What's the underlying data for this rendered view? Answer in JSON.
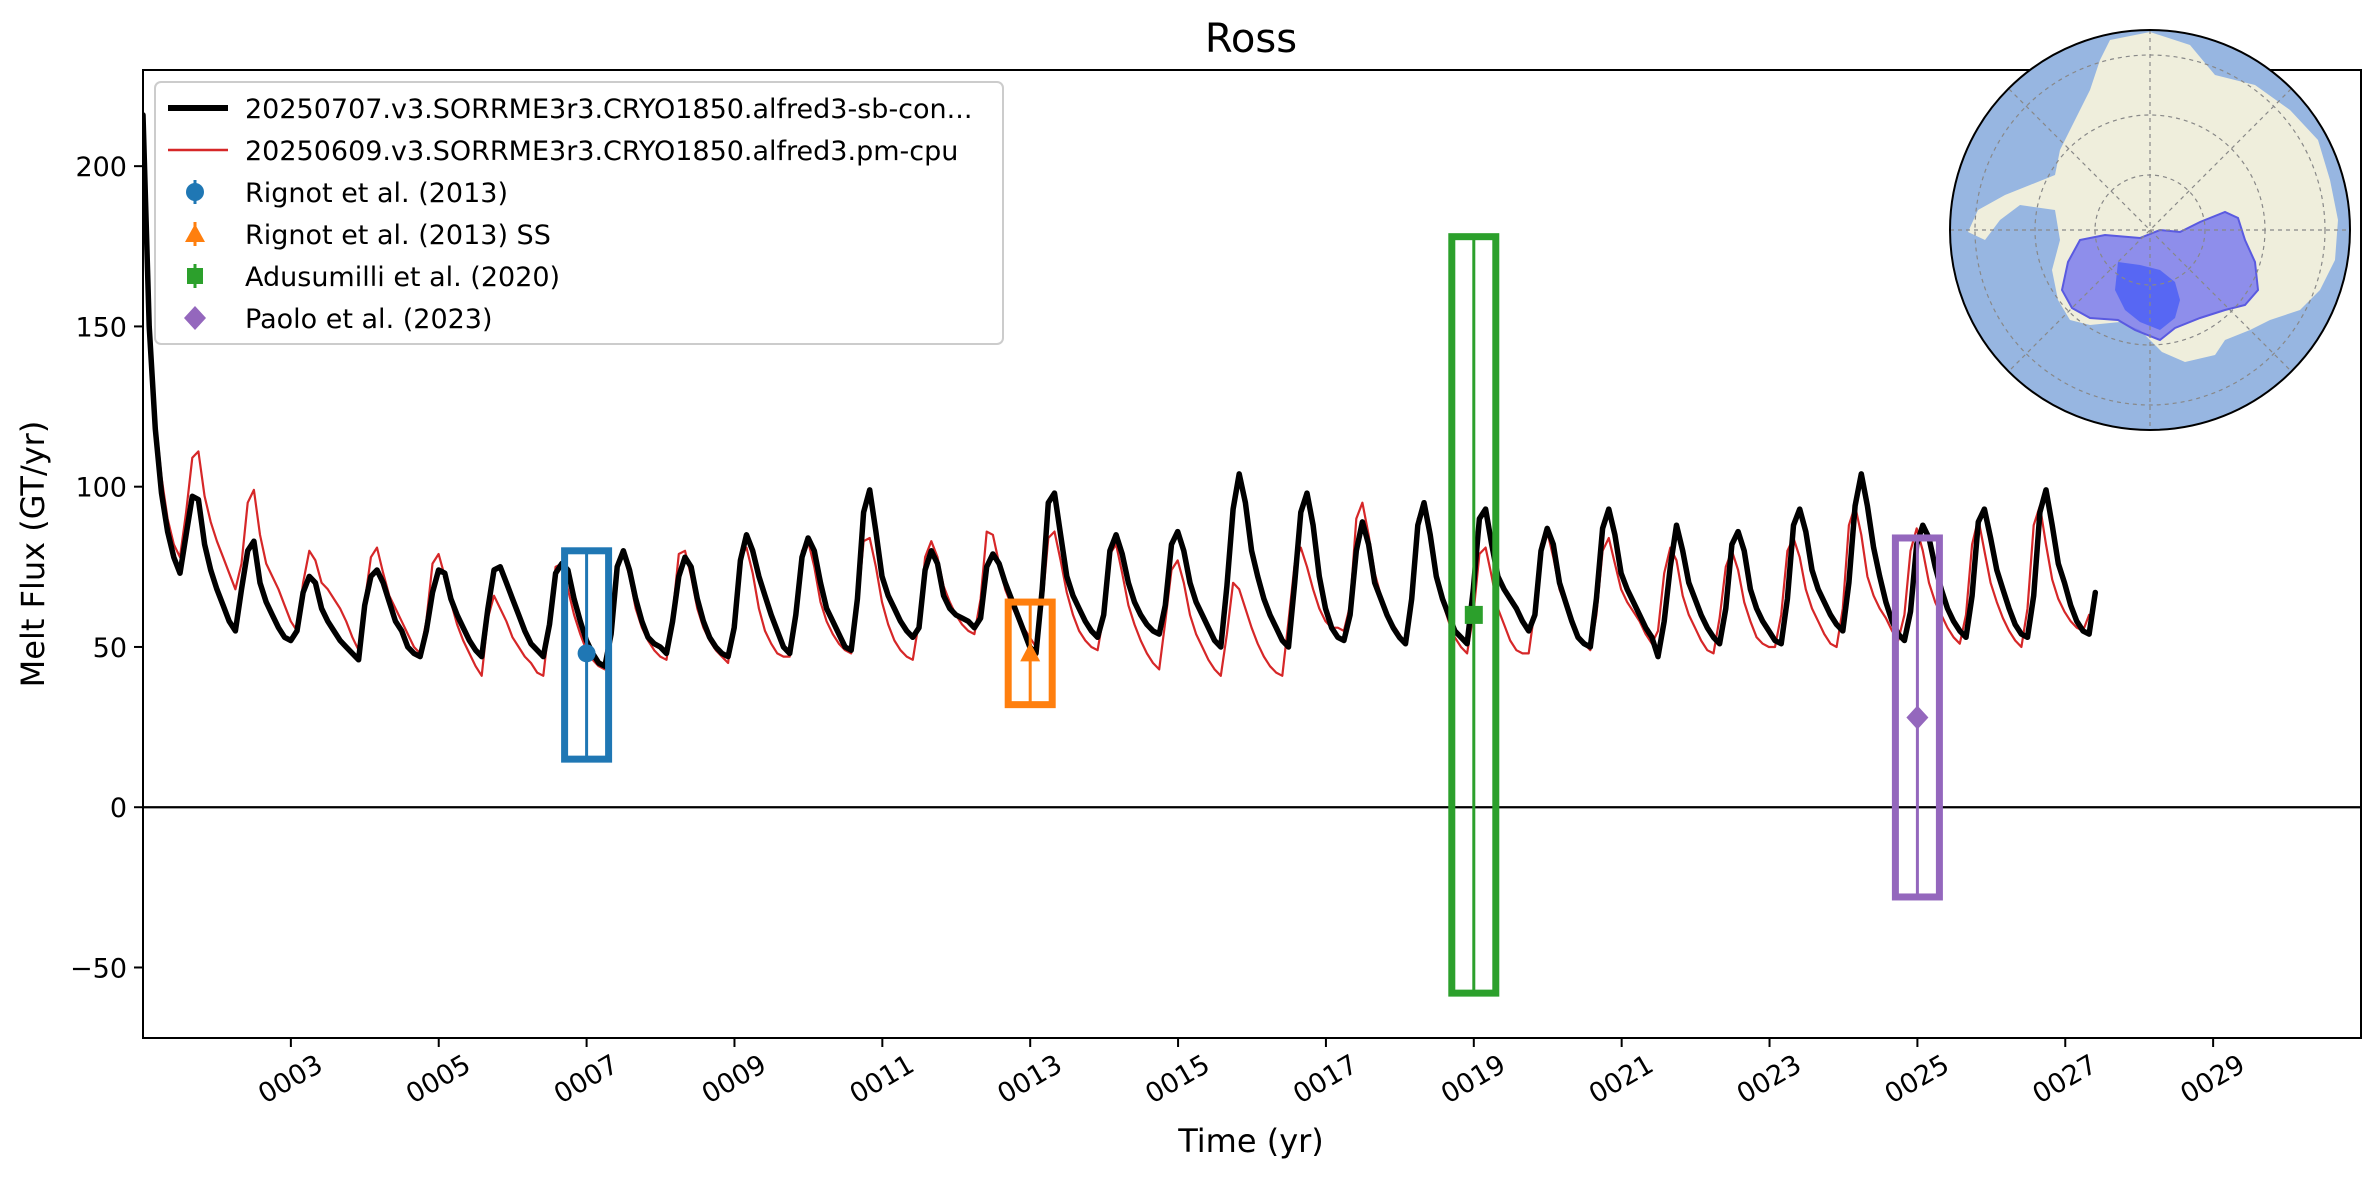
{
  "chart_data": {
    "type": "line",
    "title": "Ross",
    "xlabel": "Time (yr)",
    "ylabel": "Melt Flux (GT/yr)",
    "xlim": [
      1.0,
      31.0
    ],
    "ylim": [
      -72,
      230
    ],
    "xticks": [
      {
        "value": 3,
        "label": "0003"
      },
      {
        "value": 5,
        "label": "0005"
      },
      {
        "value": 7,
        "label": "0007"
      },
      {
        "value": 9,
        "label": "0009"
      },
      {
        "value": 11,
        "label": "0011"
      },
      {
        "value": 13,
        "label": "0013"
      },
      {
        "value": 15,
        "label": "0015"
      },
      {
        "value": 17,
        "label": "0017"
      },
      {
        "value": 19,
        "label": "0019"
      },
      {
        "value": 21,
        "label": "0021"
      },
      {
        "value": 23,
        "label": "0023"
      },
      {
        "value": 25,
        "label": "0025"
      },
      {
        "value": 27,
        "label": "0027"
      },
      {
        "value": 29,
        "label": "0029"
      }
    ],
    "yticks": [
      {
        "value": -50,
        "label": "−50"
      },
      {
        "value": 0,
        "label": "0"
      },
      {
        "value": 50,
        "label": "50"
      },
      {
        "value": 100,
        "label": "100"
      },
      {
        "value": 150,
        "label": "150"
      },
      {
        "value": 200,
        "label": "200"
      }
    ],
    "zero_line": true,
    "grid": false,
    "legend_position": "top-left",
    "series": [
      {
        "name": "20250707.v3.SORRME3r3.CRYO1850.alfred3-sb-con...",
        "color": "#000000",
        "style": "thick",
        "x0": 1.0,
        "step_years": 0.0833,
        "values": [
          216,
          150,
          118,
          98,
          86,
          78,
          73,
          85,
          97,
          96,
          82,
          74,
          68,
          63,
          58,
          55,
          68,
          80,
          83,
          70,
          64,
          60,
          56,
          53,
          52,
          55,
          67,
          72,
          70,
          62,
          58,
          55,
          52,
          50,
          48,
          46,
          63,
          72,
          74,
          70,
          64,
          58,
          55,
          50,
          48,
          47,
          55,
          67,
          74,
          73,
          65,
          60,
          56,
          52,
          49,
          47,
          62,
          74,
          75,
          70,
          65,
          60,
          55,
          51,
          49,
          47,
          57,
          73,
          76,
          74,
          65,
          58,
          52,
          48,
          45,
          44,
          54,
          75,
          80,
          74,
          65,
          58,
          53,
          51,
          50,
          48,
          58,
          72,
          78,
          75,
          65,
          58,
          53,
          50,
          48,
          47,
          56,
          77,
          85,
          80,
          72,
          66,
          60,
          55,
          50,
          48,
          60,
          78,
          84,
          80,
          70,
          62,
          58,
          54,
          50,
          49,
          65,
          92,
          99,
          86,
          72,
          66,
          62,
          58,
          55,
          53,
          56,
          74,
          80,
          76,
          66,
          62,
          60,
          59,
          58,
          56,
          59,
          75,
          79,
          76,
          70,
          65,
          60,
          55,
          50,
          48,
          68,
          95,
          98,
          85,
          72,
          66,
          62,
          58,
          55,
          53,
          60,
          80,
          85,
          79,
          70,
          64,
          60,
          57,
          55,
          54,
          63,
          82,
          86,
          80,
          70,
          64,
          60,
          56,
          52,
          50,
          69,
          93,
          104,
          95,
          80,
          72,
          65,
          60,
          56,
          52,
          50,
          70,
          92,
          98,
          88,
          72,
          62,
          56,
          53,
          52,
          60,
          80,
          89,
          82,
          70,
          65,
          60,
          56,
          53,
          51,
          65,
          88,
          95,
          85,
          72,
          65,
          60,
          55,
          53,
          51,
          68,
          90,
          93,
          82,
          72,
          68,
          65,
          62,
          58,
          55,
          60,
          80,
          87,
          82,
          70,
          64,
          58,
          53,
          51,
          50,
          65,
          87,
          93,
          85,
          73,
          68,
          64,
          60,
          56,
          53,
          47,
          58,
          75,
          88,
          80,
          70,
          65,
          60,
          56,
          53,
          51,
          62,
          82,
          86,
          80,
          68,
          62,
          58,
          55,
          52,
          51,
          65,
          88,
          93,
          86,
          74,
          68,
          64,
          60,
          57,
          55,
          70,
          94,
          104,
          94,
          81,
          72,
          64,
          58,
          54,
          52,
          61,
          82,
          88,
          84,
          75,
          68,
          62,
          58,
          55,
          53,
          66,
          89,
          93,
          84,
          74,
          68,
          62,
          57,
          54,
          53,
          66,
          92,
          99,
          88,
          76,
          70,
          63,
          58,
          55,
          54,
          67
        ]
      },
      {
        "name": "20250609.v3.SORRME3r3.CRYO1850.alfred3.pm-cpu",
        "color": "#d62728",
        "style": "thin",
        "x0": 1.0,
        "step_years": 0.0833,
        "values": [
          216,
          152,
          122,
          103,
          90,
          82,
          78,
          92,
          109,
          111,
          97,
          89,
          83,
          78,
          73,
          68,
          76,
          95,
          99,
          85,
          76,
          72,
          68,
          63,
          58,
          55,
          70,
          80,
          77,
          70,
          68,
          65,
          62,
          58,
          53,
          49,
          64,
          78,
          81,
          73,
          66,
          62,
          58,
          54,
          50,
          48,
          58,
          76,
          79,
          72,
          64,
          57,
          52,
          48,
          44,
          41,
          59,
          66,
          62,
          58,
          53,
          50,
          47,
          45,
          42,
          41,
          58,
          75,
          76,
          68,
          60,
          54,
          49,
          46,
          44,
          43,
          61,
          76,
          79,
          72,
          62,
          56,
          52,
          49,
          47,
          46,
          60,
          79,
          80,
          72,
          62,
          56,
          52,
          49,
          47,
          45,
          60,
          78,
          81,
          73,
          62,
          55,
          51,
          48,
          47,
          47,
          60,
          80,
          83,
          75,
          64,
          58,
          54,
          51,
          49,
          48,
          62,
          83,
          84,
          75,
          64,
          57,
          52,
          49,
          47,
          46,
          58,
          78,
          83,
          78,
          69,
          64,
          60,
          57,
          55,
          54,
          65,
          86,
          85,
          76,
          68,
          63,
          59,
          56,
          53,
          50,
          63,
          84,
          86,
          77,
          67,
          60,
          55,
          52,
          50,
          49,
          60,
          79,
          82,
          73,
          63,
          57,
          52,
          48,
          45,
          43,
          58,
          74,
          77,
          70,
          60,
          54,
          50,
          46,
          43,
          41,
          54,
          70,
          68,
          62,
          56,
          51,
          47,
          44,
          42,
          41,
          58,
          76,
          81,
          75,
          68,
          62,
          58,
          56,
          56,
          55,
          63,
          90,
          95,
          85,
          73,
          66,
          60,
          57,
          54,
          51,
          65,
          90,
          94,
          83,
          71,
          64,
          58,
          53,
          50,
          48,
          60,
          79,
          81,
          72,
          62,
          57,
          52,
          49,
          48,
          48,
          62,
          82,
          86,
          78,
          68,
          63,
          58,
          54,
          51,
          49,
          60,
          80,
          84,
          76,
          68,
          64,
          61,
          58,
          54,
          51,
          55,
          73,
          81,
          77,
          66,
          60,
          56,
          52,
          49,
          48,
          59,
          75,
          80,
          74,
          64,
          58,
          53,
          51,
          50,
          50,
          60,
          80,
          84,
          78,
          68,
          62,
          58,
          54,
          51,
          50,
          62,
          88,
          94,
          85,
          72,
          66,
          62,
          59,
          55,
          52,
          60,
          80,
          87,
          80,
          70,
          64,
          60,
          56,
          53,
          51,
          60,
          82,
          90,
          80,
          70,
          64,
          59,
          55,
          52,
          50,
          62,
          88,
          94,
          82,
          71,
          65,
          61,
          58,
          56,
          55,
          60
        ]
      }
    ],
    "observations": [
      {
        "name": "Rignot et al. (2013)",
        "x": 7.0,
        "y": 48,
        "low": 15,
        "high": 80,
        "color": "#1f77b4",
        "marker": "circle"
      },
      {
        "name": "Rignot et al. (2013) SS",
        "x": 13.0,
        "y": 48,
        "low": 32,
        "high": 64,
        "color": "#ff7f0e",
        "marker": "triangle"
      },
      {
        "name": "Adusumilli et al. (2020)",
        "x": 19.0,
        "y": 60,
        "low": -58,
        "high": 178,
        "color": "#2ca02c",
        "marker": "square"
      },
      {
        "name": "Paolo et al. (2023)",
        "x": 25.0,
        "y": 28,
        "low": -28,
        "high": 84,
        "color": "#9467bd",
        "marker": "diamond"
      }
    ],
    "inset_map": {
      "description_icon": "antarctica-polar-map-icon",
      "ocean_color": "#97b6e1",
      "land_color": "#efeedc",
      "region_color": "#6d6df0",
      "highlight_color": "#4a5ef5"
    }
  }
}
